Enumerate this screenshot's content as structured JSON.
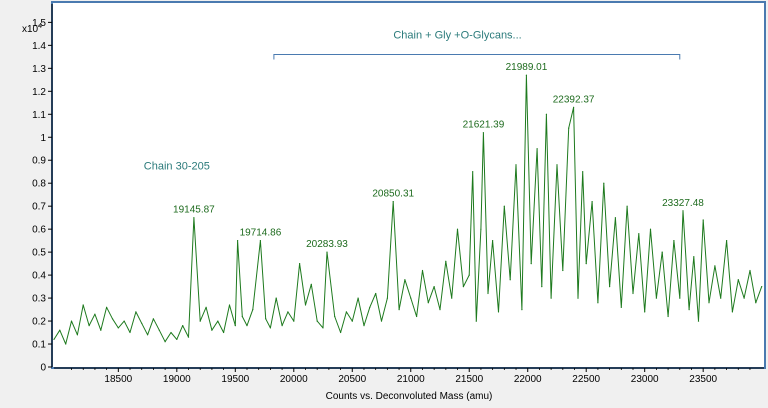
{
  "chart_data": {
    "type": "line",
    "y_multiplier": "x10",
    "y_exponent": "4",
    "xlabel": "Counts vs. Deconvoluted Mass (amu)",
    "xlim": [
      17950,
      24020
    ],
    "ylim": [
      0,
      1.58
    ],
    "x_ticks": [
      18500,
      19000,
      19500,
      20000,
      20500,
      21000,
      21500,
      22000,
      22500,
      23000,
      23500
    ],
    "y_ticks": [
      0,
      0.1,
      0.2,
      0.3,
      0.4,
      0.5,
      0.6,
      0.7,
      0.8,
      0.9,
      1,
      1.1,
      1.2,
      1.3,
      1.4,
      1.5
    ],
    "y_tick_labels": [
      "0",
      "0.1",
      "0.2",
      "0.3",
      "0.4",
      "0.5",
      "0.6",
      "0.7",
      "0.8",
      "0.9",
      "1",
      "1.1",
      "1.2",
      "1.3",
      "1.4",
      "1.5"
    ],
    "line_color": "#1e7a1e",
    "annotation_color": "#2a7a7a",
    "peak_label_color": "#1e6b1e",
    "series": [
      {
        "x": [
          17950,
          18000,
          18050,
          18100,
          18150,
          18200,
          18250,
          18300,
          18350,
          18400,
          18450,
          18500,
          18550,
          18600,
          18650,
          18700,
          18750,
          18800,
          18850,
          18900,
          18950,
          19000,
          19050,
          19100,
          19145.87,
          19200,
          19250,
          19300,
          19350,
          19400,
          19450,
          19500,
          19520,
          19560,
          19600,
          19650,
          19714.86,
          19760,
          19800,
          19850,
          19900,
          19950,
          20000,
          20050,
          20100,
          20150,
          20200,
          20250,
          20283.93,
          20350,
          20400,
          20450,
          20500,
          20550,
          20600,
          20650,
          20700,
          20750,
          20800,
          20850.31,
          20900,
          20950,
          21000,
          21050,
          21100,
          21150,
          21200,
          21250,
          21300,
          21350,
          21400,
          21450,
          21500,
          21530,
          21560,
          21600,
          21621.39,
          21660,
          21700,
          21750,
          21800,
          21850,
          21900,
          21950,
          21989.01,
          22030,
          22080,
          22120,
          22160,
          22200,
          22250,
          22300,
          22350,
          22392.37,
          22430,
          22470,
          22500,
          22550,
          22600,
          22650,
          22700,
          22750,
          22800,
          22850,
          22900,
          22950,
          23000,
          23050,
          23100,
          23150,
          23200,
          23250,
          23300,
          23327.48,
          23380,
          23420,
          23460,
          23500,
          23550,
          23600,
          23650,
          23700,
          23750,
          23800,
          23850,
          23900,
          23950,
          24000
        ],
        "y": [
          0.12,
          0.16,
          0.1,
          0.2,
          0.14,
          0.27,
          0.18,
          0.23,
          0.16,
          0.26,
          0.21,
          0.17,
          0.2,
          0.15,
          0.24,
          0.19,
          0.14,
          0.21,
          0.16,
          0.11,
          0.15,
          0.12,
          0.18,
          0.13,
          0.65,
          0.2,
          0.26,
          0.16,
          0.2,
          0.15,
          0.27,
          0.18,
          0.55,
          0.22,
          0.18,
          0.25,
          0.55,
          0.21,
          0.17,
          0.3,
          0.18,
          0.24,
          0.2,
          0.45,
          0.27,
          0.36,
          0.2,
          0.17,
          0.5,
          0.22,
          0.15,
          0.24,
          0.2,
          0.3,
          0.18,
          0.26,
          0.32,
          0.2,
          0.3,
          0.72,
          0.25,
          0.38,
          0.3,
          0.22,
          0.42,
          0.28,
          0.35,
          0.25,
          0.46,
          0.3,
          0.6,
          0.35,
          0.4,
          0.85,
          0.2,
          0.6,
          1.02,
          0.32,
          0.55,
          0.24,
          0.7,
          0.38,
          0.88,
          0.25,
          1.27,
          0.45,
          0.95,
          0.35,
          1.1,
          0.3,
          0.88,
          0.42,
          1.04,
          1.13,
          0.3,
          0.85,
          0.45,
          0.72,
          0.28,
          0.8,
          0.35,
          0.65,
          0.26,
          0.7,
          0.32,
          0.58,
          0.24,
          0.6,
          0.3,
          0.5,
          0.22,
          0.55,
          0.3,
          0.68,
          0.25,
          0.48,
          0.2,
          0.64,
          0.28,
          0.44,
          0.3,
          0.55,
          0.24,
          0.38,
          0.3,
          0.42,
          0.28,
          0.35
        ]
      }
    ],
    "peak_labels": [
      {
        "x": 19145.87,
        "y": 0.65,
        "text": "19145.87"
      },
      {
        "x": 19714.86,
        "y": 0.55,
        "text": "19714.86"
      },
      {
        "x": 20283.93,
        "y": 0.5,
        "text": "20283.93"
      },
      {
        "x": 20850.31,
        "y": 0.72,
        "text": "20850.31"
      },
      {
        "x": 21621.39,
        "y": 1.02,
        "text": "21621.39"
      },
      {
        "x": 21989.01,
        "y": 1.27,
        "text": "21989.01"
      },
      {
        "x": 22392.37,
        "y": 1.13,
        "text": "22392.37"
      },
      {
        "x": 23327.48,
        "y": 0.68,
        "text": "23327.48"
      }
    ],
    "annotations": [
      {
        "text": "Chain 30-205",
        "x": 19000,
        "y": 0.86
      },
      {
        "text": "Chain + Gly +O-Glycans...",
        "x": 21400,
        "y": 1.43
      }
    ],
    "bracket": {
      "x_start": 19830,
      "x_end": 23300,
      "y": 1.36
    }
  }
}
